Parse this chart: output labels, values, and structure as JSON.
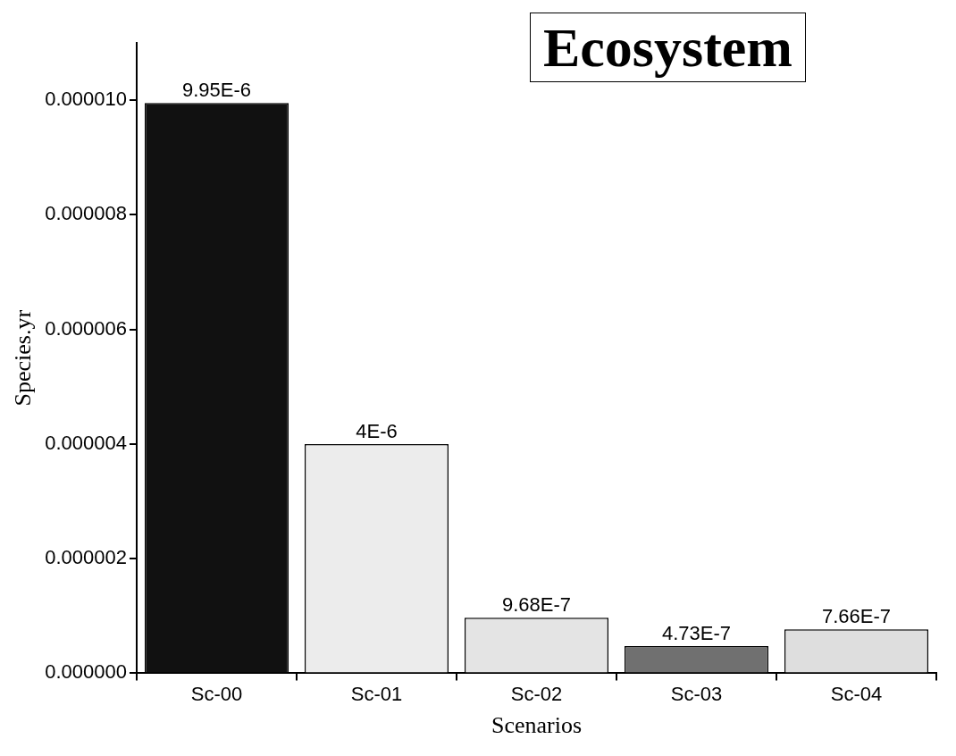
{
  "chart_data": {
    "type": "bar",
    "title": "Ecosystem",
    "xlabel": "Scenarios",
    "ylabel": "Species.yr",
    "categories": [
      "Sc-00",
      "Sc-01",
      "Sc-02",
      "Sc-03",
      "Sc-04"
    ],
    "values": [
      9.95e-06,
      4e-06,
      9.68e-07,
      4.73e-07,
      7.66e-07
    ],
    "colors": [
      "#111111",
      "#ececec",
      "#e4e4e4",
      "#707070",
      "#dedede"
    ],
    "value_labels": [
      "9.95E-6",
      "4E-6",
      "9.68E-7",
      "4.73E-7",
      "7.66E-7"
    ],
    "ylim": [
      0,
      1.1e-05
    ],
    "yticks": [
      {
        "value": 0,
        "label": "0.000000"
      },
      {
        "value": 2e-06,
        "label": "0.000002"
      },
      {
        "value": 4e-06,
        "label": "0.000004"
      },
      {
        "value": 6e-06,
        "label": "0.000006"
      },
      {
        "value": 8e-06,
        "label": "0.000008"
      },
      {
        "value": 1e-05,
        "label": "0.000010"
      }
    ]
  }
}
